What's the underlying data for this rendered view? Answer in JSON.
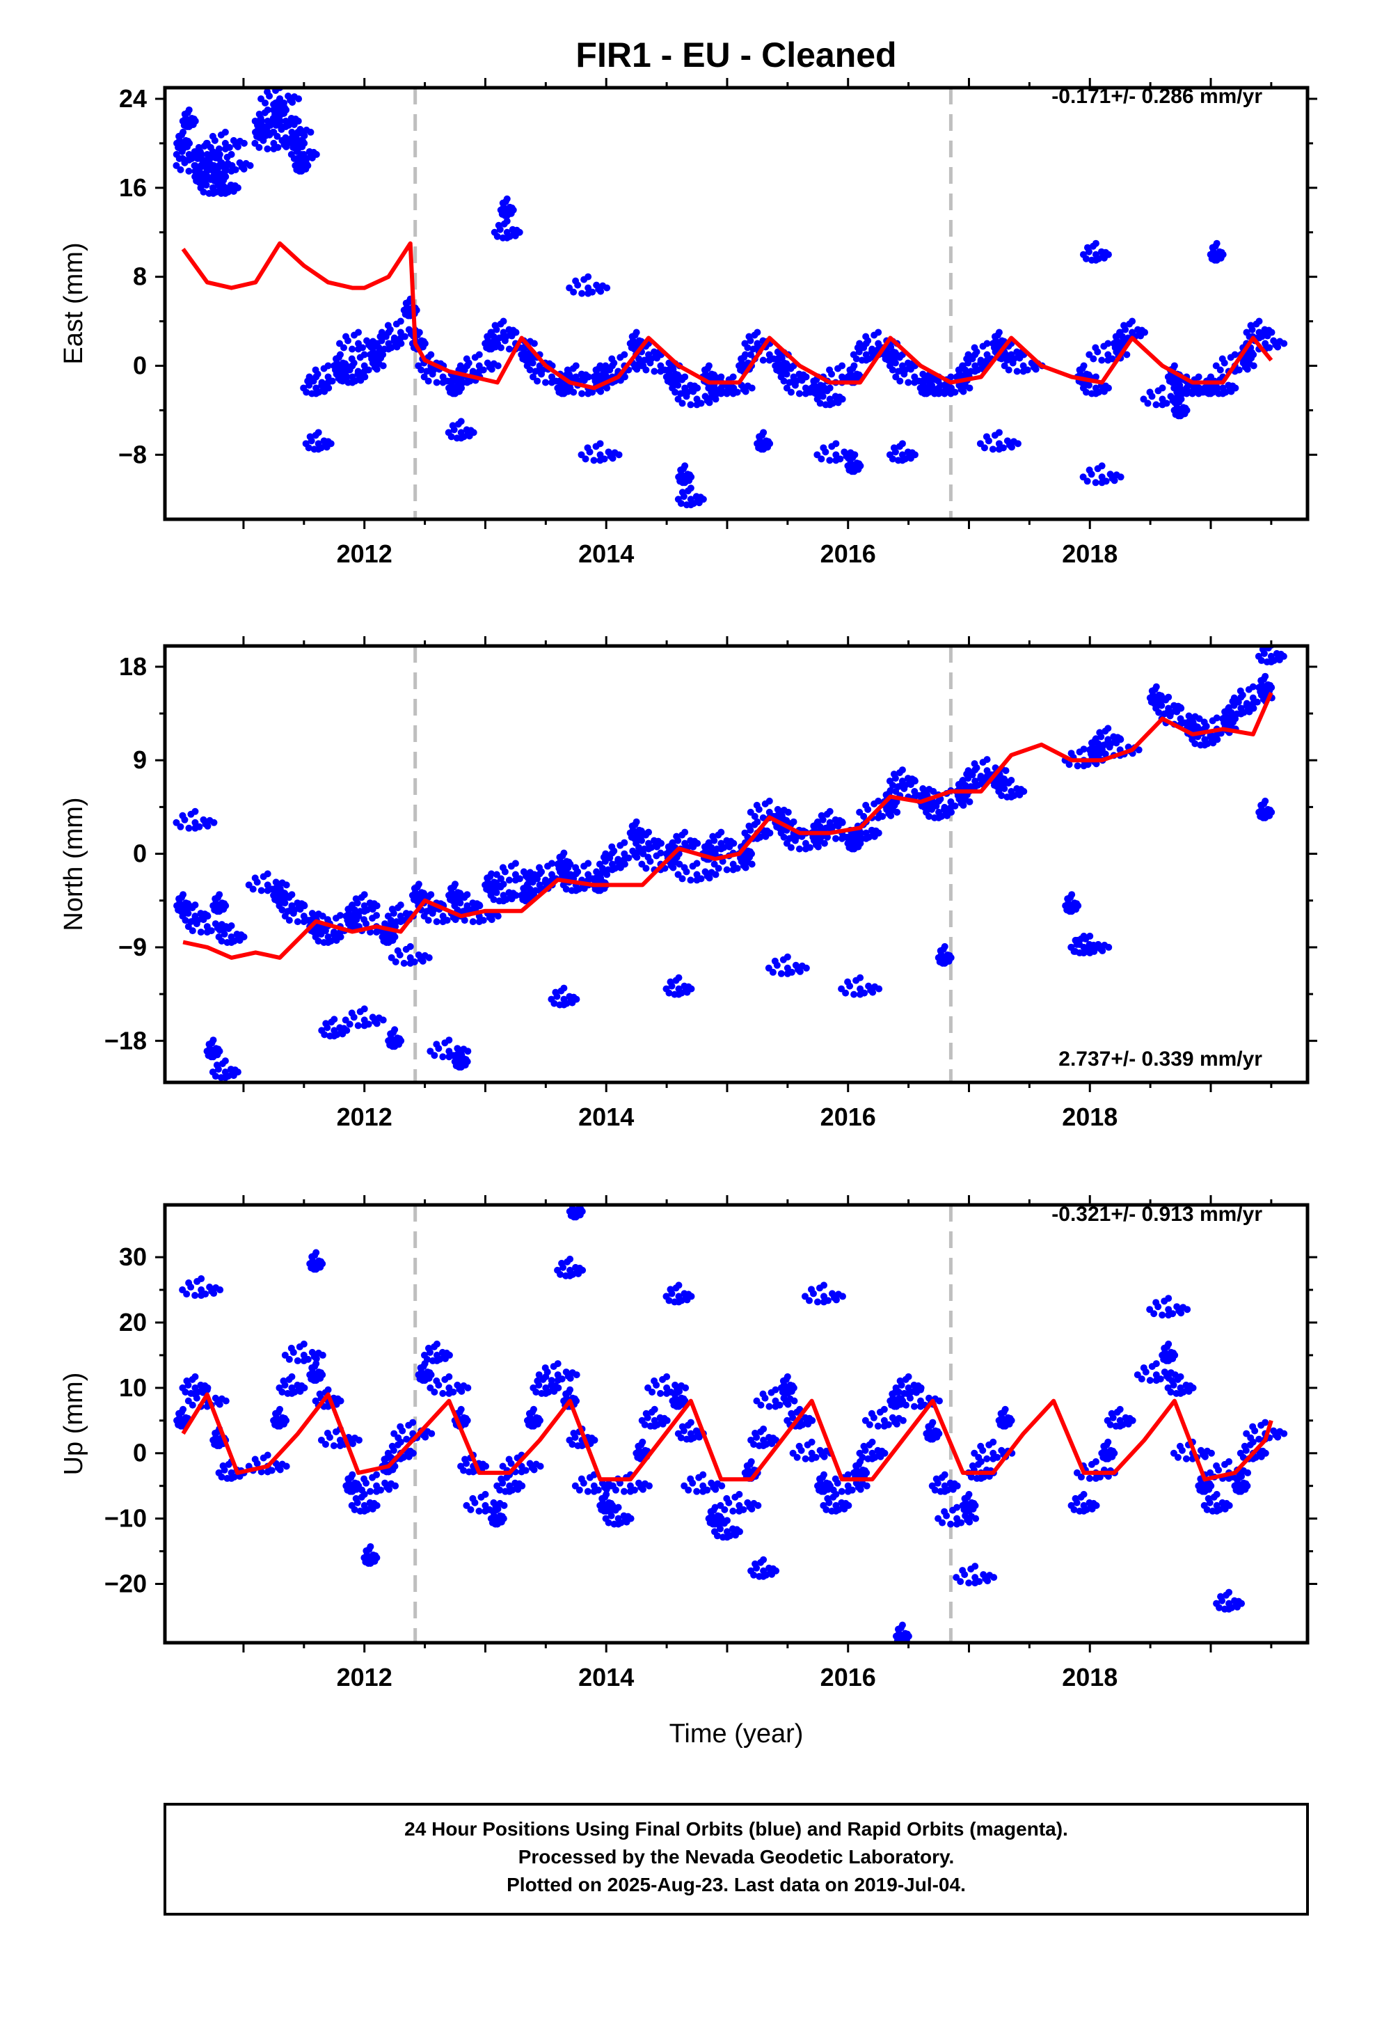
{
  "title": "FIR1  - EU - Cleaned",
  "xlabel": "Time (year)",
  "footer": [
    "24 Hour Positions Using Final Orbits (blue) and Rapid Orbits (magenta).",
    "Processed by the Nevada Geodetic Laboratory.",
    "Plotted on 2025-Aug-23. Last data on 2019-Jul-04."
  ],
  "colors": {
    "points": "#0000ff",
    "model": "#ff0000",
    "steps": "#bfbfbf",
    "frame": "#000000"
  },
  "chart_data": [
    {
      "type": "scatter",
      "ylabel": "East (mm)",
      "rate": "-0.171+/- 0.286 mm/yr",
      "xlim": [
        2010.35,
        2019.8
      ],
      "ylim": [
        -13.8,
        25
      ],
      "yticks": [
        24,
        16,
        8,
        0,
        -8
      ],
      "ytick_labels": [
        "24",
        "16",
        "8",
        "0",
        "−8"
      ],
      "xticks": [
        2012,
        2014,
        2016,
        2018
      ],
      "xtick_labels": [
        "2012",
        "2014",
        "2016",
        "2018"
      ],
      "step_epochs": [
        2012.42,
        2016.85
      ],
      "grid": false,
      "series": [
        {
          "kind": "points",
          "x": [
            2010.5,
            2010.55,
            2010.6,
            2010.65,
            2010.7,
            2010.75,
            2010.8,
            2010.85,
            2010.9,
            2010.55,
            2010.75,
            2010.85,
            2011.15,
            2011.2,
            2011.25,
            2011.3,
            2011.35,
            2011.4,
            2011.45,
            2011.5,
            2011.3,
            2011.48,
            2011.6,
            2011.7,
            2011.8,
            2011.9,
            2012.0,
            2012.1,
            2012.2,
            2012.3,
            2012.38,
            2011.62,
            2011.95,
            2012.45,
            2012.55,
            2012.65,
            2012.75,
            2012.85,
            2012.95,
            2013.05,
            2013.15,
            2013.25,
            2013.35,
            2013.45,
            2013.55,
            2013.65,
            2013.75,
            2013.85,
            2013.95,
            2014.05,
            2014.15,
            2014.25,
            2014.35,
            2014.45,
            2014.55,
            2014.65,
            2014.75,
            2014.85,
            2014.95,
            2015.05,
            2015.15,
            2015.25,
            2015.35,
            2015.45,
            2015.55,
            2015.65,
            2015.75,
            2015.85,
            2015.95,
            2016.05,
            2016.15,
            2016.25,
            2016.35,
            2016.45,
            2016.55,
            2016.65,
            2016.75,
            2016.85,
            2016.95,
            2017.05,
            2017.15,
            2017.25,
            2017.35,
            2017.45,
            2017.95,
            2018.05,
            2018.15,
            2018.25,
            2018.35,
            2018.6,
            2018.7,
            2018.8,
            2018.9,
            2019.0,
            2019.1,
            2019.2,
            2019.3,
            2019.4,
            2019.45,
            2013.18,
            2013.18,
            2013.85,
            2014.65,
            2014.7,
            2015.9,
            2016.05,
            2018.05,
            2018.1,
            2019.05,
            2012.8,
            2013.95,
            2015.3,
            2016.45,
            2017.25,
            2018.75
          ],
          "y": [
            20,
            19,
            18,
            17,
            19,
            18,
            17,
            16,
            18,
            22,
            16,
            20,
            21,
            22,
            20,
            23,
            22,
            21,
            20,
            19,
            24,
            18,
            -2,
            -1,
            0,
            -1,
            0,
            1,
            2,
            3,
            5,
            -7,
            2,
            2,
            0,
            -1,
            -2,
            -1,
            0,
            2,
            3,
            2,
            1,
            0,
            -1,
            -2,
            -1,
            -2,
            -1,
            -1,
            0,
            2,
            1,
            0,
            -1,
            -2,
            -3,
            -1,
            -2,
            -2,
            0,
            2,
            1,
            0,
            -1,
            -2,
            -2,
            -3,
            -1,
            -1,
            1,
            2,
            1,
            0,
            -1,
            -2,
            -2,
            -2,
            -1,
            0,
            1,
            2,
            1,
            0,
            -1,
            -2,
            1,
            2,
            3,
            -3,
            -1,
            -2,
            -2,
            -2,
            -2,
            0,
            1,
            3,
            2,
            14,
            12,
            7,
            -10,
            -12,
            -8,
            -9,
            10,
            -10,
            10,
            -6,
            -8,
            -7,
            -8,
            -7,
            -4
          ]
        },
        {
          "kind": "model",
          "x": [
            2010.5,
            2010.7,
            2010.9,
            2011.1,
            2011.3,
            2011.5,
            2011.7,
            2011.9,
            2012.0,
            2012.2,
            2012.38,
            2012.42,
            2012.5,
            2012.7,
            2012.9,
            2013.1,
            2013.3,
            2013.5,
            2013.7,
            2013.9,
            2014.1,
            2014.35,
            2014.6,
            2014.85,
            2015.1,
            2015.35,
            2015.6,
            2015.85,
            2016.1,
            2016.35,
            2016.6,
            2016.85,
            2017.1,
            2017.35,
            2017.6,
            2017.85,
            2018.1,
            2018.35,
            2018.6,
            2018.85,
            2019.1,
            2019.35,
            2019.5
          ],
          "y": [
            10.5,
            7.5,
            7,
            7.5,
            11,
            9,
            7.5,
            7,
            7,
            8,
            11,
            2,
            0.5,
            -0.5,
            -1,
            -1.5,
            2.5,
            0,
            -1.5,
            -2,
            -1,
            2.5,
            0,
            -1.5,
            -1.5,
            2.5,
            0,
            -1.5,
            -1.5,
            2.5,
            0,
            -1.5,
            -1,
            2.5,
            0,
            -1,
            -1.5,
            2.5,
            0,
            -1.5,
            -1.5,
            2.5,
            0.5
          ]
        }
      ]
    },
    {
      "type": "scatter",
      "ylabel": "North (mm)",
      "rate": "2.737+/- 0.339 mm/yr",
      "xlim": [
        2010.35,
        2019.8
      ],
      "ylim": [
        -22,
        20
      ],
      "yticks": [
        18,
        9,
        0,
        -9,
        -18
      ],
      "ytick_labels": [
        "18",
        "9",
        "0",
        "−9",
        "−18"
      ],
      "xticks": [
        2012,
        2014,
        2016,
        2018
      ],
      "xtick_labels": [
        "2012",
        "2014",
        "2016",
        "2018"
      ],
      "step_epochs": [
        2012.42,
        2016.85
      ],
      "grid": false,
      "series": [
        {
          "kind": "points",
          "x": [
            2010.5,
            2010.6,
            2010.7,
            2010.8,
            2010.9,
            2011.2,
            2011.3,
            2011.4,
            2011.5,
            2011.6,
            2011.7,
            2011.8,
            2011.9,
            2012.0,
            2012.1,
            2012.2,
            2012.3,
            2012.38,
            2012.45,
            2012.55,
            2012.65,
            2012.75,
            2012.85,
            2012.95,
            2013.05,
            2013.15,
            2013.25,
            2013.35,
            2013.45,
            2013.55,
            2013.65,
            2013.75,
            2013.85,
            2013.95,
            2014.05,
            2014.15,
            2014.25,
            2014.35,
            2014.45,
            2014.55,
            2014.65,
            2014.75,
            2014.85,
            2014.95,
            2015.05,
            2015.15,
            2015.25,
            2015.35,
            2015.45,
            2015.55,
            2015.65,
            2015.75,
            2015.85,
            2015.95,
            2016.05,
            2016.15,
            2016.25,
            2016.35,
            2016.45,
            2016.55,
            2016.65,
            2016.75,
            2016.85,
            2016.95,
            2017.05,
            2017.15,
            2017.25,
            2017.35,
            2017.95,
            2018.05,
            2018.15,
            2018.25,
            2018.55,
            2018.65,
            2018.75,
            2018.85,
            2018.95,
            2019.05,
            2019.15,
            2019.25,
            2019.35,
            2019.45,
            2019.5,
            2010.6,
            2010.75,
            2010.85,
            2012.7,
            2012.8,
            2014.6,
            2016.1,
            2017.85,
            2017.95,
            2018.0,
            2019.45,
            2011.75,
            2012.0,
            2012.25,
            2013.65,
            2015.5,
            2016.8
          ],
          "y": [
            -5,
            -6,
            -7,
            -5,
            -8,
            -3,
            -4,
            -5,
            -6,
            -7,
            -8,
            -7,
            -6,
            -5,
            -7,
            -8,
            -6,
            -10,
            -4,
            -5,
            -6,
            -4,
            -5,
            -6,
            -3,
            -4,
            -2,
            -4,
            -3,
            -2,
            -1,
            -3,
            -2,
            -3,
            -1,
            0,
            2,
            1,
            -1,
            0,
            1,
            -2,
            0,
            1,
            -1,
            0,
            2,
            4,
            3,
            2,
            1,
            2,
            3,
            2,
            1,
            2,
            4,
            5,
            7,
            6,
            5,
            4,
            5,
            6,
            7,
            8,
            7,
            6,
            9,
            10,
            11,
            10,
            15,
            14,
            13,
            12,
            11,
            12,
            13,
            14,
            15,
            16,
            19,
            3,
            -19,
            -21,
            -19,
            -20,
            -13,
            -13,
            -5,
            -9,
            -9,
            4,
            -17,
            -16,
            -18,
            -14,
            -11,
            -10
          ]
        },
        {
          "kind": "model",
          "x": [
            2010.5,
            2010.7,
            2010.9,
            2011.1,
            2011.3,
            2011.6,
            2011.9,
            2012.1,
            2012.3,
            2012.5,
            2012.8,
            2013.0,
            2013.3,
            2013.6,
            2013.9,
            2014.1,
            2014.3,
            2014.6,
            2014.9,
            2015.1,
            2015.35,
            2015.6,
            2015.85,
            2016.1,
            2016.35,
            2016.6,
            2016.85,
            2017.1,
            2017.35,
            2017.6,
            2017.85,
            2018.1,
            2018.35,
            2018.6,
            2018.85,
            2019.1,
            2019.35,
            2019.5
          ],
          "y": [
            -8.5,
            -9,
            -10,
            -9.5,
            -10,
            -6.5,
            -7.5,
            -7,
            -7.5,
            -4.5,
            -6,
            -5.5,
            -5.5,
            -2.5,
            -3,
            -3,
            -3,
            0.5,
            -0.5,
            0,
            3.5,
            2,
            2,
            2.5,
            5.5,
            5,
            6,
            6,
            9.5,
            10.5,
            9,
            9,
            10,
            13,
            11.5,
            12,
            11.5,
            15.5
          ]
        }
      ]
    },
    {
      "type": "scatter",
      "ylabel": "Up (mm)",
      "rate": "-0.321+/- 0.913 mm/yr",
      "xlim": [
        2010.35,
        2019.8
      ],
      "ylim": [
        -29,
        38
      ],
      "yticks": [
        30,
        20,
        10,
        0,
        -10,
        -20
      ],
      "ytick_labels": [
        "30",
        "20",
        "10",
        "0",
        "−10",
        "−20"
      ],
      "xticks": [
        2012,
        2014,
        2016,
        2018
      ],
      "xtick_labels": [
        "2012",
        "2014",
        "2016",
        "2018"
      ],
      "step_epochs": [
        2012.42,
        2016.85
      ],
      "grid": false,
      "series": [
        {
          "kind": "points",
          "x": [
            2010.5,
            2010.6,
            2010.7,
            2010.8,
            2010.9,
            2011.2,
            2011.3,
            2011.4,
            2011.5,
            2011.6,
            2011.7,
            2011.8,
            2011.9,
            2012.0,
            2012.1,
            2012.2,
            2012.3,
            2012.4,
            2012.5,
            2012.6,
            2012.7,
            2012.8,
            2012.9,
            2013.0,
            2013.1,
            2013.2,
            2013.3,
            2013.4,
            2013.5,
            2013.6,
            2013.7,
            2013.8,
            2013.9,
            2014.0,
            2014.1,
            2014.2,
            2014.3,
            2014.4,
            2014.5,
            2014.6,
            2014.7,
            2014.8,
            2014.9,
            2015.0,
            2015.1,
            2015.2,
            2015.3,
            2015.4,
            2015.5,
            2015.6,
            2015.7,
            2015.8,
            2015.9,
            2016.0,
            2016.1,
            2016.2,
            2016.3,
            2016.4,
            2016.5,
            2016.6,
            2016.7,
            2016.8,
            2016.9,
            2017.0,
            2017.1,
            2017.2,
            2017.3,
            2017.95,
            2018.05,
            2018.15,
            2018.25,
            2018.55,
            2018.65,
            2018.75,
            2018.85,
            2018.95,
            2019.05,
            2019.15,
            2019.25,
            2019.35,
            2019.45,
            2013.75,
            2013.7,
            2015.8,
            2016.45,
            2019.15,
            2010.65,
            2011.6,
            2014.6,
            2018.65,
            2012.05,
            2015.3,
            2017.05
          ],
          "y": [
            5,
            10,
            8,
            2,
            -3,
            -2,
            5,
            10,
            15,
            12,
            8,
            2,
            -5,
            -8,
            -5,
            -2,
            0,
            3,
            12,
            15,
            10,
            5,
            -2,
            -8,
            -10,
            -5,
            -2,
            5,
            10,
            12,
            8,
            2,
            -5,
            -8,
            -10,
            -5,
            0,
            5,
            10,
            8,
            3,
            -5,
            -10,
            -12,
            -8,
            -3,
            2,
            8,
            10,
            5,
            0,
            -5,
            -8,
            -5,
            -3,
            0,
            5,
            8,
            10,
            8,
            3,
            -5,
            -10,
            -8,
            -3,
            0,
            5,
            -8,
            -3,
            0,
            5,
            12,
            15,
            10,
            0,
            -5,
            -8,
            -3,
            -5,
            0,
            3,
            37,
            28,
            24,
            -28,
            -23,
            25,
            29,
            24,
            22,
            -16,
            -18,
            -19
          ]
        },
        {
          "kind": "model",
          "x": [
            2010.5,
            2010.7,
            2010.95,
            2011.2,
            2011.45,
            2011.7,
            2011.95,
            2012.2,
            2012.45,
            2012.7,
            2012.95,
            2013.2,
            2013.45,
            2013.7,
            2013.95,
            2014.2,
            2014.45,
            2014.7,
            2014.95,
            2015.2,
            2015.45,
            2015.7,
            2015.95,
            2016.2,
            2016.45,
            2016.7,
            2016.95,
            2017.2,
            2017.45,
            2017.7,
            2017.95,
            2018.2,
            2018.45,
            2018.7,
            2018.95,
            2019.2,
            2019.45,
            2019.5
          ],
          "y": [
            3,
            9,
            -3,
            -2,
            3,
            9,
            -3,
            -2,
            3,
            8,
            -3,
            -3,
            2,
            8,
            -4,
            -4,
            2,
            8,
            -4,
            -4,
            2,
            8,
            -4,
            -4,
            2,
            8,
            -3,
            -3,
            3,
            8,
            -3,
            -3,
            2,
            8,
            -4,
            -3,
            2,
            5
          ]
        }
      ]
    }
  ]
}
